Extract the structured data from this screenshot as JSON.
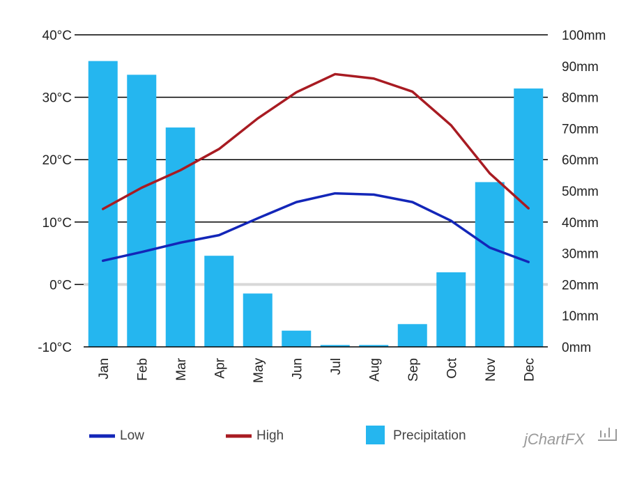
{
  "brand": "jChartFX",
  "colors": {
    "low": "#1326b8",
    "high": "#a81b22",
    "precipitation": "#25b6ef",
    "gridline": "#000000",
    "zeroline": "#d8d8d8"
  },
  "chart_data": {
    "type": "bar",
    "categories": [
      "Jan",
      "Feb",
      "Mar",
      "Apr",
      "May",
      "Jun",
      "Jul",
      "Aug",
      "Sep",
      "Oct",
      "Nov",
      "Dec"
    ],
    "series": [
      {
        "name": "Low",
        "type": "line",
        "axis": "left",
        "values": [
          3.8,
          5.2,
          6.7,
          7.9,
          10.6,
          13.2,
          14.6,
          14.4,
          13.2,
          10.2,
          5.9,
          3.6
        ]
      },
      {
        "name": "High",
        "type": "line",
        "axis": "left",
        "values": [
          12.1,
          15.5,
          18.3,
          21.7,
          26.6,
          30.8,
          33.7,
          33.0,
          30.9,
          25.5,
          17.8,
          12.2
        ]
      },
      {
        "name": "Precipitation",
        "type": "bar",
        "axis": "right",
        "values": [
          91.6,
          87.2,
          70.3,
          29.2,
          17.1,
          5.2,
          0.6,
          0.6,
          7.3,
          23.9,
          52.8,
          82.8
        ]
      }
    ],
    "left_axis": {
      "min": -10,
      "max": 40,
      "step": 10,
      "ticks": [
        "-10°C",
        "0°C",
        "10°C",
        "20°C",
        "30°C",
        "40°C"
      ]
    },
    "right_axis": {
      "min": 0,
      "max": 100,
      "step": 10,
      "ticks": [
        "0mm",
        "10mm",
        "20mm",
        "30mm",
        "40mm",
        "50mm",
        "60mm",
        "70mm",
        "80mm",
        "90mm",
        "100mm"
      ]
    },
    "grid": true,
    "legend_position": "bottom"
  }
}
